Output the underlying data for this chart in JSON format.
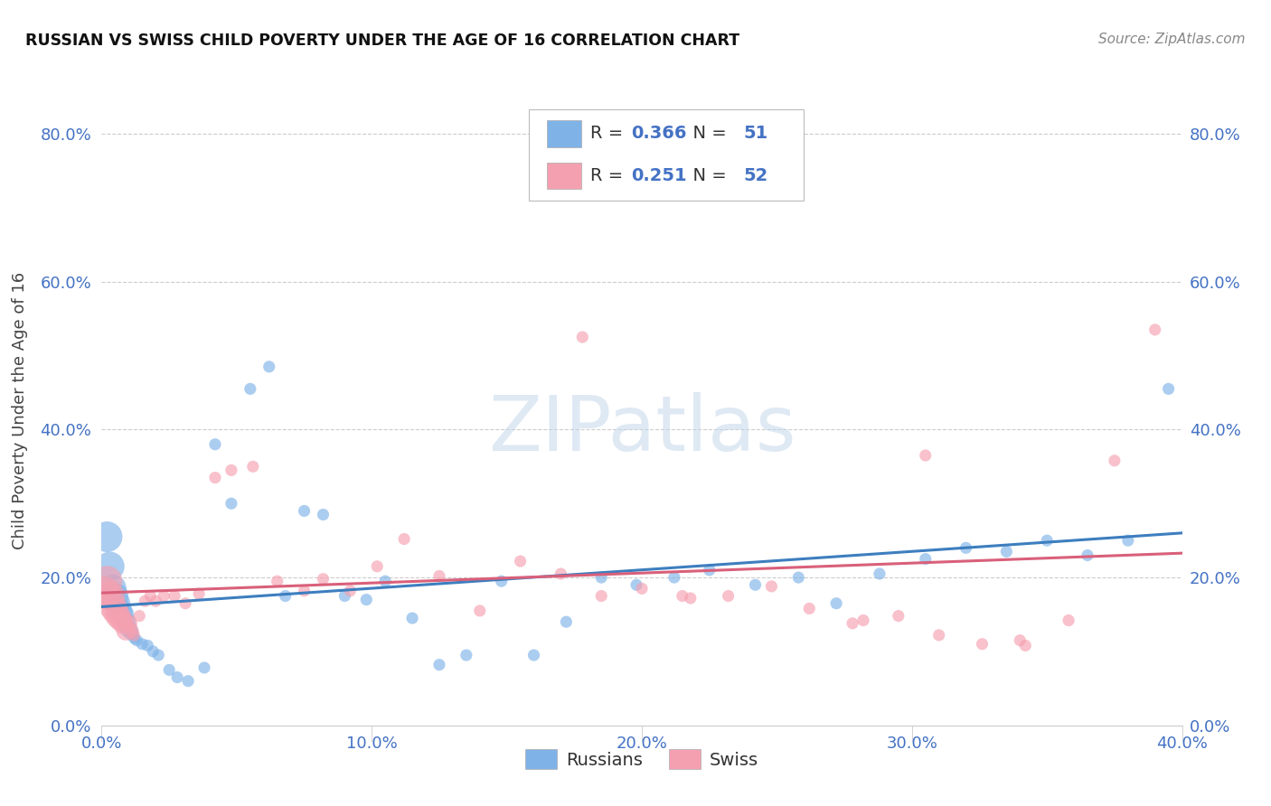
{
  "title": "RUSSIAN VS SWISS CHILD POVERTY UNDER THE AGE OF 16 CORRELATION CHART",
  "source": "Source: ZipAtlas.com",
  "ylabel_label": "Child Poverty Under the Age of 16",
  "xlim": [
    0.0,
    0.4
  ],
  "ylim": [
    0.0,
    0.85
  ],
  "xticks": [
    0.0,
    0.1,
    0.2,
    0.3,
    0.4
  ],
  "xtick_labels": [
    "0.0%",
    "10.0%",
    "20.0%",
    "30.0%",
    "40.0%"
  ],
  "yticks": [
    0.0,
    0.2,
    0.4,
    0.6,
    0.8
  ],
  "ytick_labels": [
    "0.0%",
    "20.0%",
    "40.0%",
    "60.0%",
    "80.0%"
  ],
  "russian_R": "0.366",
  "russian_N": "51",
  "swiss_R": "0.251",
  "swiss_N": "52",
  "background_color": "#ffffff",
  "grid_color": "#cccccc",
  "russian_color": "#7fb3e8",
  "russian_line_color": "#3d7ebf",
  "swiss_color": "#f5a0b0",
  "swiss_line_color": "#d9607a",
  "watermark": "ZIPatlas",
  "legend_label_russian": "Russians",
  "legend_label_swiss": "Swiss",
  "russian_x": [
    0.002,
    0.003,
    0.004,
    0.005,
    0.006,
    0.007,
    0.008,
    0.009,
    0.01,
    0.011,
    0.012,
    0.013,
    0.015,
    0.017,
    0.019,
    0.021,
    0.025,
    0.028,
    0.032,
    0.038,
    0.042,
    0.048,
    0.055,
    0.062,
    0.068,
    0.075,
    0.082,
    0.09,
    0.098,
    0.105,
    0.115,
    0.125,
    0.135,
    0.148,
    0.16,
    0.172,
    0.185,
    0.198,
    0.212,
    0.225,
    0.242,
    0.258,
    0.272,
    0.288,
    0.305,
    0.32,
    0.335,
    0.35,
    0.365,
    0.38,
    0.395
  ],
  "russian_y": [
    0.255,
    0.215,
    0.185,
    0.175,
    0.165,
    0.155,
    0.15,
    0.14,
    0.13,
    0.125,
    0.118,
    0.115,
    0.11,
    0.108,
    0.1,
    0.095,
    0.075,
    0.065,
    0.06,
    0.078,
    0.38,
    0.3,
    0.455,
    0.485,
    0.175,
    0.29,
    0.285,
    0.175,
    0.17,
    0.195,
    0.145,
    0.082,
    0.095,
    0.195,
    0.095,
    0.14,
    0.2,
    0.19,
    0.2,
    0.21,
    0.19,
    0.2,
    0.165,
    0.205,
    0.225,
    0.24,
    0.235,
    0.25,
    0.23,
    0.25,
    0.455
  ],
  "swiss_x": [
    0.001,
    0.002,
    0.003,
    0.004,
    0.005,
    0.006,
    0.007,
    0.008,
    0.009,
    0.01,
    0.011,
    0.012,
    0.014,
    0.016,
    0.018,
    0.02,
    0.023,
    0.027,
    0.031,
    0.036,
    0.042,
    0.048,
    0.056,
    0.065,
    0.075,
    0.082,
    0.092,
    0.102,
    0.112,
    0.125,
    0.14,
    0.155,
    0.17,
    0.185,
    0.2,
    0.215,
    0.232,
    0.248,
    0.262,
    0.278,
    0.295,
    0.31,
    0.326,
    0.342,
    0.358,
    0.375,
    0.39,
    0.218,
    0.282,
    0.34,
    0.305,
    0.178
  ],
  "swiss_y": [
    0.18,
    0.195,
    0.175,
    0.162,
    0.155,
    0.148,
    0.143,
    0.138,
    0.128,
    0.138,
    0.128,
    0.122,
    0.148,
    0.168,
    0.175,
    0.168,
    0.175,
    0.175,
    0.165,
    0.178,
    0.335,
    0.345,
    0.35,
    0.195,
    0.182,
    0.198,
    0.182,
    0.215,
    0.252,
    0.202,
    0.155,
    0.222,
    0.205,
    0.175,
    0.185,
    0.175,
    0.175,
    0.188,
    0.158,
    0.138,
    0.148,
    0.122,
    0.11,
    0.108,
    0.142,
    0.358,
    0.535,
    0.172,
    0.142,
    0.115,
    0.365,
    0.525
  ],
  "russian_marker_size_base": 80,
  "swiss_marker_size_base": 80
}
